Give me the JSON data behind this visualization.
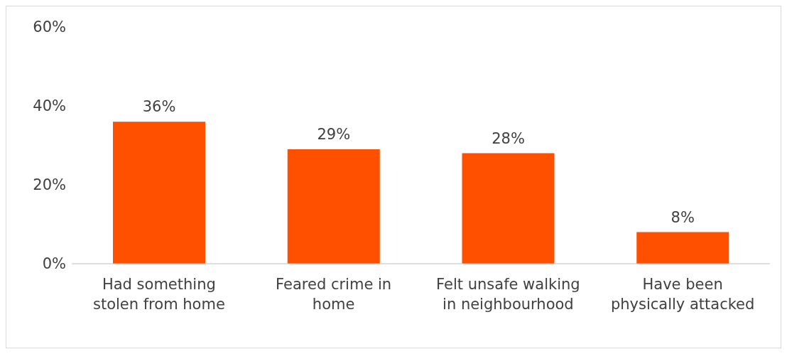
{
  "chart_data": {
    "type": "bar",
    "categories": [
      "Had something stolen from home",
      "Feared crime in home",
      "Felt unsafe walking in neighbourhood",
      "Have been physically attacked"
    ],
    "values": [
      36,
      29,
      28,
      8
    ],
    "color": "#ff5000",
    "value_labels": [
      "36%",
      "29%",
      "28%",
      "8%"
    ],
    "ylim": [
      0,
      60
    ],
    "yticks": [
      {
        "value": 0,
        "label": "0%"
      },
      {
        "value": 20,
        "label": "20%"
      },
      {
        "value": 40,
        "label": "40%"
      },
      {
        "value": 60,
        "label": "60%"
      }
    ]
  }
}
